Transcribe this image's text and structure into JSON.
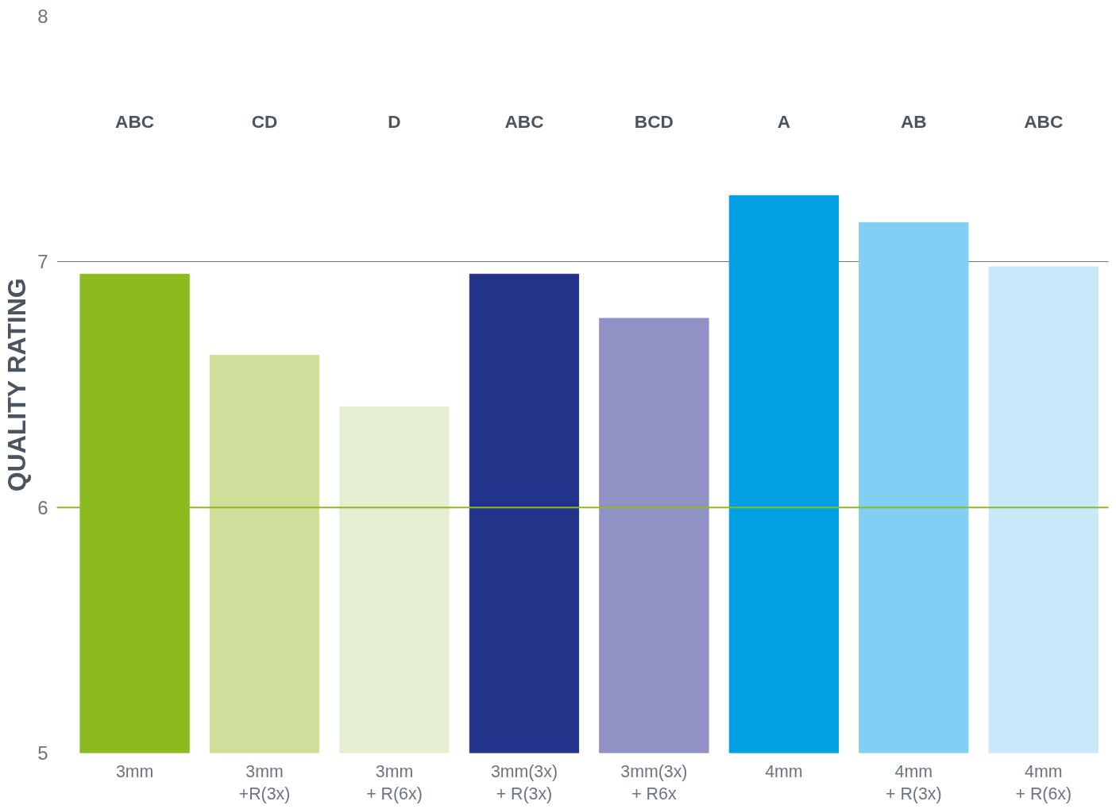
{
  "chart_data": {
    "type": "bar",
    "ylabel": "QUALITY RATING",
    "categories": [
      "3mm",
      "3mm\n+R(3x)",
      "3mm\n+ R(6x)",
      "3mm(3x)\n+ R(3x)",
      "3mm(3x)\n+ R6x",
      "4mm",
      "4mm\n+ R(3x)",
      "4mm\n+ R(6x)"
    ],
    "values": [
      6.95,
      6.62,
      6.41,
      6.95,
      6.77,
      7.27,
      7.16,
      6.98
    ],
    "colors": [
      "#8bbb1f",
      "#cddf98",
      "#e4eed0",
      "#233389",
      "#9091c4",
      "#00a0e2",
      "#82cff4",
      "#c9e8fa"
    ],
    "ylim": [
      5,
      8
    ],
    "yticks": [
      5,
      6,
      7,
      8
    ],
    "grid": "y",
    "ref_lines": [
      {
        "axis": "y",
        "value": 6,
        "color": "#8bbb1f"
      }
    ],
    "annotations": [
      "ABC",
      "CD",
      "D",
      "ABC",
      "BCD",
      "A",
      "AB",
      "ABC"
    ]
  }
}
